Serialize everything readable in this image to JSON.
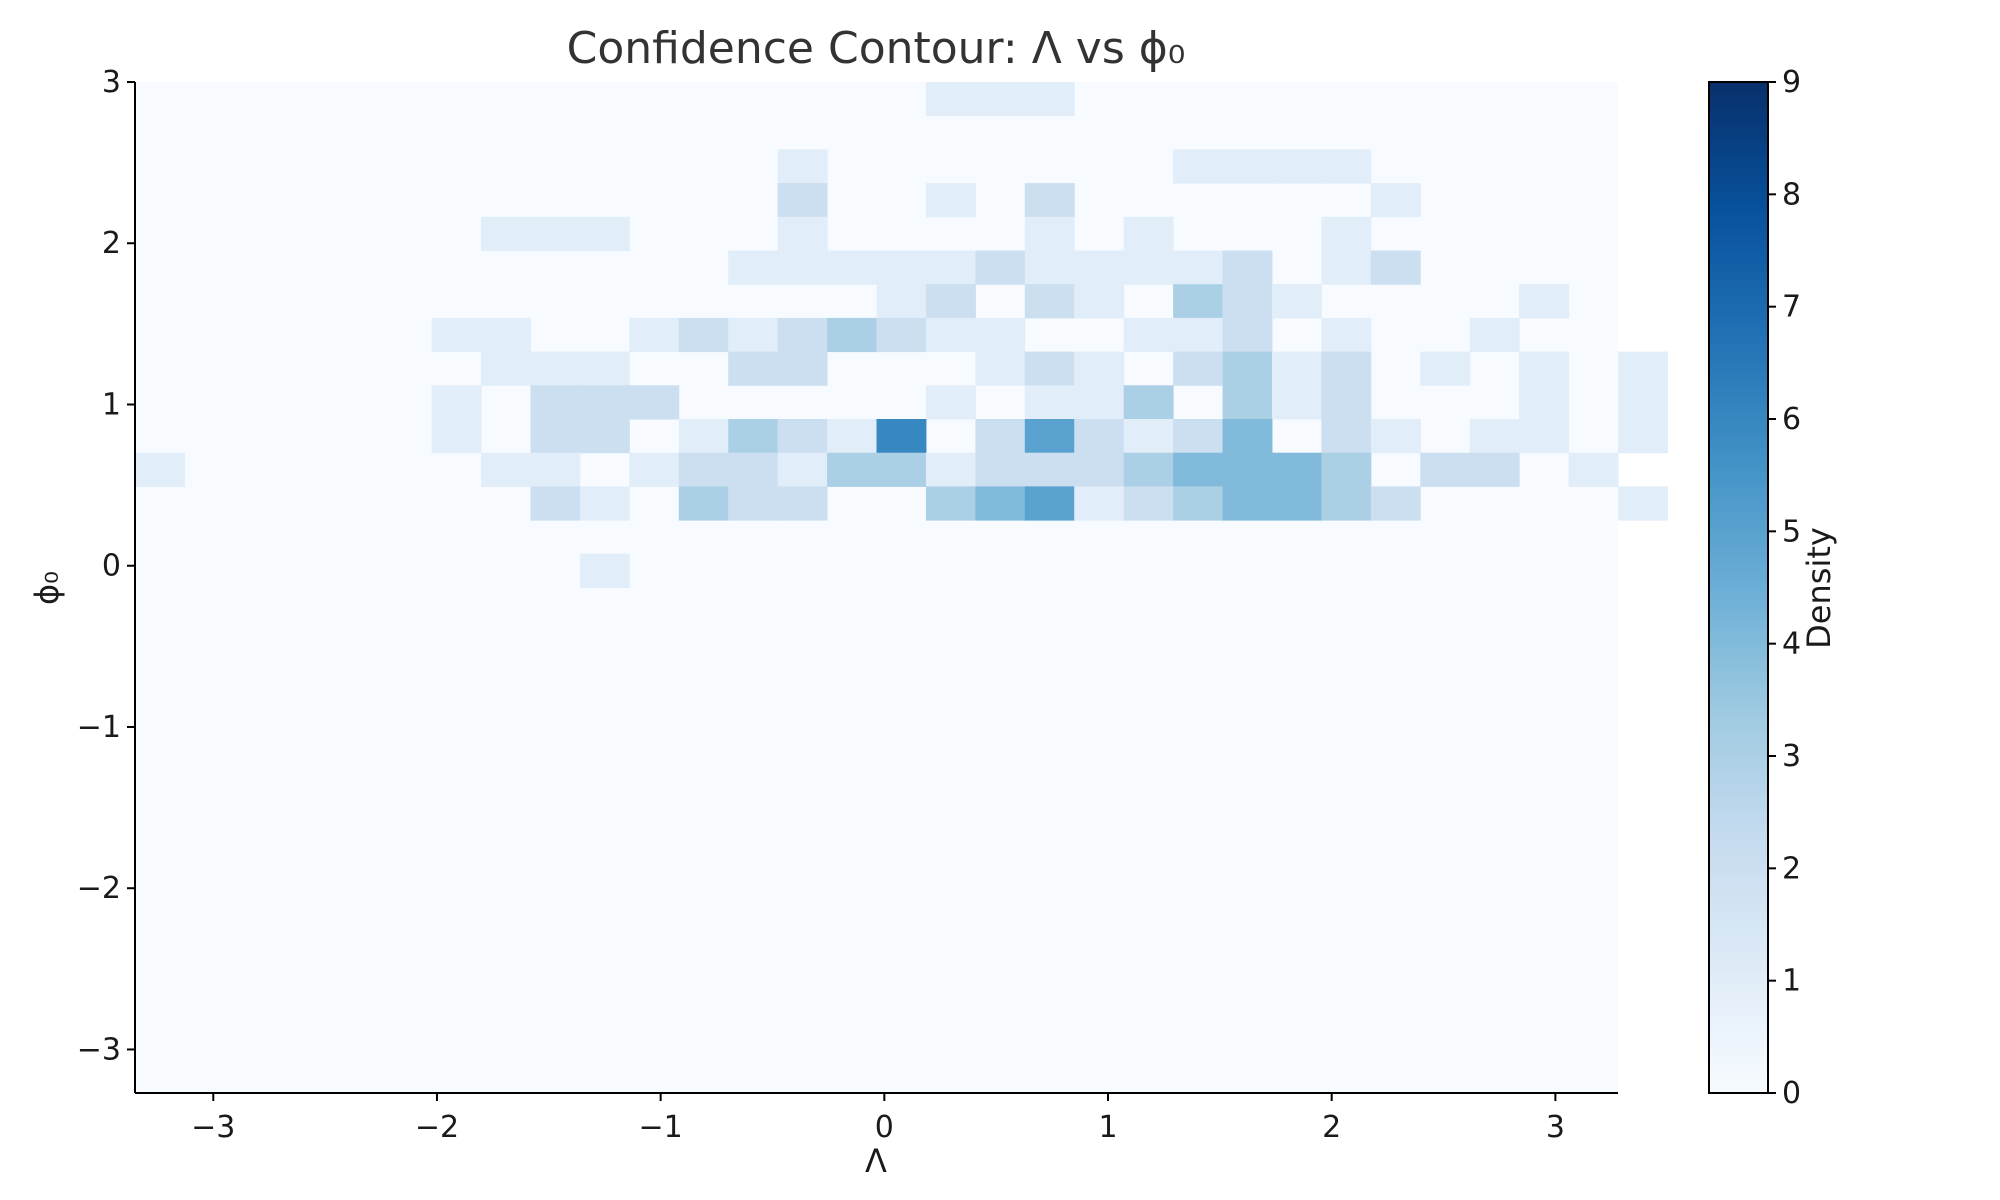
{
  "chart_data": {
    "type": "heatmap",
    "title": "Confidence Contour: Λ vs ϕ₀",
    "xlabel": "Λ",
    "ylabel": "ϕ₀",
    "colorbar_label": "Density",
    "x_range": [
      -3.35,
      3.28
    ],
    "y_range": [
      -3.27,
      3.0
    ],
    "bin_width_x": 0.221,
    "bin_width_y": 0.209,
    "x_ticks": [
      {
        "value": -3,
        "label": "−3"
      },
      {
        "value": -2,
        "label": "−2"
      },
      {
        "value": -1,
        "label": "−1"
      },
      {
        "value": 0,
        "label": "0"
      },
      {
        "value": 1,
        "label": "1"
      },
      {
        "value": 2,
        "label": "2"
      },
      {
        "value": 3,
        "label": "3"
      }
    ],
    "y_ticks": [
      {
        "value": -3,
        "label": "−3"
      },
      {
        "value": -2,
        "label": "−2"
      },
      {
        "value": -1,
        "label": "−1"
      },
      {
        "value": 0,
        "label": "0"
      },
      {
        "value": 1,
        "label": "1"
      },
      {
        "value": 2,
        "label": "2"
      },
      {
        "value": 3,
        "label": "3"
      }
    ],
    "colorbar_range": [
      0,
      9
    ],
    "colorbar_ticks": [
      "0",
      "1",
      "2",
      "3",
      "4",
      "5",
      "6",
      "7",
      "8",
      "9"
    ],
    "colormap": [
      "#f7fbff",
      "#deebf7",
      "#c6dbef",
      "#9ecae1",
      "#6baed6",
      "#4292c6",
      "#2171b5",
      "#08519c",
      "#08306b"
    ],
    "grid": false,
    "background_value": 0,
    "counts_rows_top_to_bottom": [
      "0000000000000000111000000000000",
      "0000000000000000000000000000000",
      "0000000000000100000001111000000",
      "0000000000000200102000000100000",
      "0000000111000100001010001000000",
      "0000000000001111121111201200000",
      "0000000000000001202103210000100",
      "0000001100121232110011201001000",
      "0000000111002200012102312010101",
      "0000001022200000101130312000101",
      "0000001022013216025212402101101",
      "1000000110122133122234443022010",
      "0000000021032200345123443200001",
      "0000000000000000000000000000000",
      "0000000001000000000000000000000"
    ]
  }
}
